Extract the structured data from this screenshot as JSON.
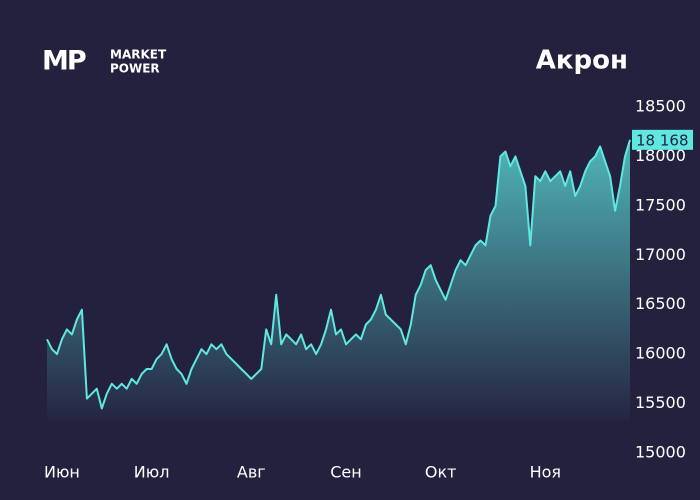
{
  "logo": {
    "mark": "MP",
    "lines": [
      "MARKET",
      "POWER"
    ]
  },
  "chart_data": {
    "type": "area",
    "title": "Акрон",
    "categories": [
      null,
      null,
      null,
      "Июн",
      null,
      null,
      null,
      null,
      null,
      null,
      null,
      null,
      null,
      null,
      null,
      null,
      null,
      null,
      null,
      null,
      null,
      "Июл",
      null,
      null,
      null,
      null,
      null,
      null,
      null,
      null,
      null,
      null,
      null,
      null,
      null,
      null,
      null,
      null,
      null,
      null,
      null,
      "Авг",
      null,
      null,
      null,
      null,
      null,
      null,
      null,
      null,
      null,
      null,
      null,
      null,
      null,
      null,
      null,
      null,
      null,
      null,
      "Сен",
      null,
      null,
      null,
      null,
      null,
      null,
      null,
      null,
      null,
      null,
      null,
      null,
      null,
      null,
      null,
      null,
      null,
      null,
      "Окт",
      null,
      null,
      null,
      null,
      null,
      null,
      null,
      null,
      null,
      null,
      null,
      null,
      null,
      null,
      null,
      null,
      null,
      null,
      null,
      null,
      "Ноя",
      null,
      null,
      null,
      null,
      null,
      null,
      null,
      null,
      null,
      null,
      null,
      null,
      null,
      null,
      null,
      null,
      null
    ],
    "values": [
      16150,
      16050,
      16000,
      16150,
      16250,
      16200,
      16350,
      16450,
      15550,
      15600,
      15650,
      15450,
      15600,
      15700,
      15650,
      15700,
      15650,
      15750,
      15700,
      15800,
      15850,
      15850,
      15950,
      16000,
      16100,
      15950,
      15850,
      15800,
      15700,
      15850,
      15950,
      16050,
      16000,
      16100,
      16050,
      16100,
      16000,
      15950,
      15900,
      15850,
      15800,
      15750,
      15800,
      15850,
      16250,
      16100,
      16600,
      16100,
      16200,
      16150,
      16100,
      16200,
      16050,
      16100,
      16000,
      16100,
      16250,
      16450,
      16200,
      16250,
      16100,
      16150,
      16200,
      16150,
      16300,
      16350,
      16450,
      16600,
      16400,
      16350,
      16300,
      16250,
      16100,
      16300,
      16600,
      16700,
      16850,
      16900,
      16750,
      16650,
      16550,
      16700,
      16850,
      16950,
      16900,
      17000,
      17100,
      17150,
      17100,
      17400,
      17500,
      18000,
      18050,
      17900,
      18000,
      17850,
      17700,
      17100,
      17800,
      17750,
      17850,
      17750,
      17800,
      17850,
      17700,
      17850,
      17600,
      17700,
      17850,
      17950,
      18000,
      18100,
      17950,
      17800,
      17450,
      17700,
      18000,
      18168
    ],
    "value_labels": [
      null,
      null,
      null,
      null,
      null,
      null,
      null,
      null,
      null,
      null,
      null,
      null,
      null,
      null,
      null,
      null,
      null,
      null,
      null,
      null,
      null,
      null,
      null,
      null,
      null,
      null,
      null,
      null,
      null,
      null,
      null,
      null,
      null,
      null,
      null,
      null,
      null,
      null,
      null,
      null,
      null,
      null,
      null,
      null,
      null,
      null,
      null,
      null,
      null,
      null,
      null,
      null,
      null,
      null,
      null,
      null,
      null,
      null,
      null,
      null,
      null,
      null,
      null,
      null,
      null,
      null,
      null,
      null,
      null,
      null,
      null,
      null,
      null,
      null,
      null,
      null,
      null,
      null,
      null,
      null,
      null,
      null,
      null,
      null,
      null,
      null,
      null,
      null,
      null,
      null,
      null,
      null,
      null,
      null,
      null,
      null,
      null,
      null,
      null,
      null,
      null,
      null,
      null,
      null,
      null,
      null,
      null,
      null,
      null,
      null,
      null,
      null,
      null,
      null,
      null,
      null,
      null,
      "18 168"
    ],
    "color": "#5ee8e0",
    "ylim": [
      15000,
      18500
    ],
    "yticks": [
      15000,
      15500,
      16000,
      16500,
      17000,
      17500,
      18000,
      18500
    ],
    "grid": false
  }
}
